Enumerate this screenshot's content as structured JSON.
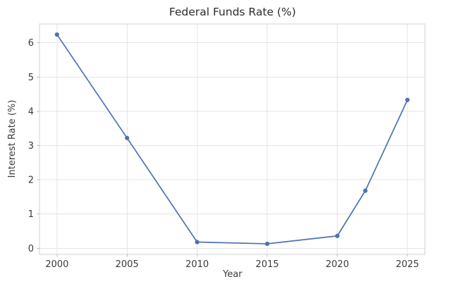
{
  "figure": {
    "title": "Federal Funds Rate (%)",
    "xlabel": "Year",
    "ylabel": "Interest Rate (%)"
  },
  "chart_data": {
    "type": "line",
    "title": "Federal Funds Rate (%)",
    "xlabel": "Year",
    "ylabel": "Interest Rate (%)",
    "x": [
      2000,
      2005,
      2010,
      2015,
      2020,
      2022,
      2025
    ],
    "y": [
      6.24,
      3.22,
      0.18,
      0.13,
      0.36,
      1.68,
      4.33
    ],
    "xticks": [
      2000,
      2005,
      2010,
      2015,
      2020,
      2025
    ],
    "yticks": [
      0,
      1,
      2,
      3,
      4,
      5,
      6
    ],
    "xlim": [
      1998.75,
      2026.25
    ],
    "ylim": [
      -0.18,
      6.55
    ],
    "grid": true,
    "legend_position": "none",
    "marker": "circle",
    "colors": {
      "line": "#4c72b0",
      "marker": "#4c72b0",
      "grid": "#e4e4e4",
      "spine": "#d0d0d0",
      "tick_mark": "#bbbbbb",
      "tick_text": "#3a3a3a",
      "title_text": "#2b2b2b",
      "background": "#ffffff"
    }
  }
}
